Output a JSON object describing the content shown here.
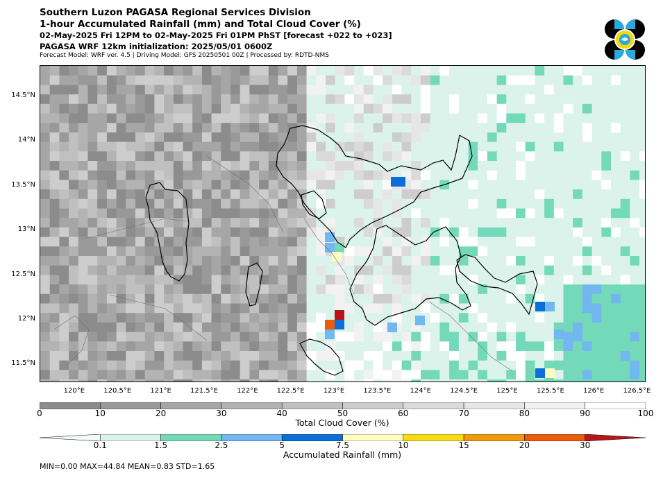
{
  "header": {
    "line1": "Southern Luzon PAGASA Regional Services Division",
    "line2": "1-hour Accumulated Rainfall (mm) and Total Cloud Cover (%)",
    "line3": "02-May-2025 Fri 12PM to 02-May-2025 Fri 01PM PhST [forecast +022 to +023]",
    "line4": "PAGASA WRF 12km initialization: 2025/05/01 0600Z",
    "line5": "Forecast Model: WRF ver. 4.5 | Driving Model: GFS 20250501 00Z | Processed by: RDTD-NMS"
  },
  "logo": {
    "name": "PAGASA logo",
    "colors": [
      "#000000",
      "#29a9e0",
      "#f5d90a",
      "#ffffff"
    ]
  },
  "map": {
    "lon_range": [
      119.6,
      126.6
    ],
    "lat_range": [
      11.3,
      14.85
    ],
    "lat_ticks": [
      "14.5°N",
      "14°N",
      "13.5°N",
      "13°N",
      "12.5°N",
      "12°N",
      "11.5°N"
    ],
    "lat_values": [
      14.5,
      14.0,
      13.5,
      13.0,
      12.5,
      12.0,
      11.5
    ],
    "lon_ticks": [
      "120°E",
      "120.5°E",
      "121°E",
      "121.5°E",
      "122°E",
      "122.5°E",
      "123°E",
      "123.5°E",
      "124°E",
      "124.5°E",
      "125°E",
      "125.5°E",
      "126°E",
      "126.5°E"
    ],
    "lon_values": [
      120.0,
      120.5,
      121.0,
      121.5,
      122.0,
      122.5,
      123.0,
      123.5,
      124.0,
      124.5,
      125.0,
      125.5,
      126.0,
      126.5
    ]
  },
  "cloud_colorbar": {
    "title": "Total Cloud Cover (%)",
    "ticks": [
      "0",
      "10",
      "20",
      "30",
      "40",
      "50",
      "60",
      "70",
      "80",
      "90",
      "100"
    ],
    "colors": [
      "#8c8c8c",
      "#999999",
      "#a6a6a6",
      "#b3b3b3",
      "#c0c0c0",
      "#cdcdcd",
      "#dadada",
      "#e6e6e6",
      "#f2f2f2",
      "#ffffff"
    ]
  },
  "rain_colorbar": {
    "title": "Accumulated Rainfall (mm)",
    "ticks": [
      "0.1",
      "1.5",
      "2.5",
      "5",
      "7.5",
      "10",
      "15",
      "20",
      "30"
    ],
    "colors": [
      "#f4fbfb",
      "#dcf3ec",
      "#74d9b9",
      "#72b7ef",
      "#0a6fd8",
      "#fdfdbf",
      "#f8db12",
      "#f29a0f",
      "#ec5a0c",
      "#b8151a"
    ]
  },
  "stats": "MIN=0.00   MAX=44.84   MEAN=0.83   STD=1.65"
}
